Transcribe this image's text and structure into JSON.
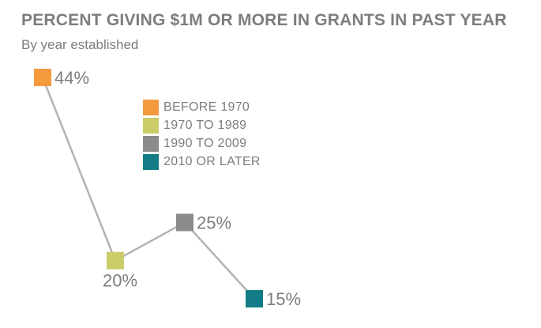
{
  "chart_data": {
    "type": "line",
    "title": "PERCENT GIVING $1M OR MORE IN GRANTS IN PAST YEAR",
    "subtitle": "By year established",
    "categories": [
      "BEFORE 1970",
      "1970 TO 1989",
      "1990 TO 2009",
      "2010 OR LATER"
    ],
    "values": [
      44,
      20,
      25,
      15
    ],
    "data_labels": [
      "44%",
      "20%",
      "25%",
      "15%"
    ],
    "colors": [
      "#f39a3e",
      "#cbcc6a",
      "#8a8b8c",
      "#137c87"
    ],
    "line_color": "#b3b3b3",
    "label_color": "#7d7d7d",
    "ylim": [
      15,
      44
    ],
    "grid": false,
    "legend_position": "top-center"
  }
}
